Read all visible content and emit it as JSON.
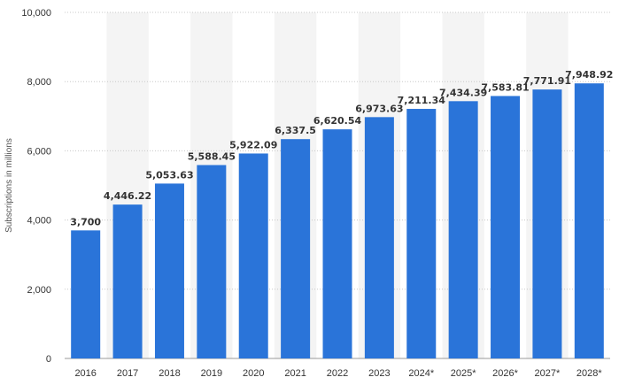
{
  "chart_data": {
    "type": "bar",
    "ylabel": "Subscriptions in millions",
    "xlabel": "",
    "categories": [
      "2016",
      "2017",
      "2018",
      "2019",
      "2020",
      "2021",
      "2022",
      "2023",
      "2024*",
      "2025*",
      "2026*",
      "2027*",
      "2028*"
    ],
    "values": [
      3700,
      4446.22,
      5053.63,
      5588.45,
      5922.09,
      6337.5,
      6620.54,
      6973.63,
      7211.34,
      7434.39,
      7583.81,
      7771.91,
      7948.92
    ],
    "value_labels": [
      "3,700",
      "4,446.22",
      "5,053.63",
      "5,588.45",
      "5,922.09",
      "6,337.5",
      "6,620.54",
      "6,973.63",
      "7,211.34",
      "7,434.39",
      "7,583.81",
      "7,771.91",
      "7,948.92"
    ],
    "ylim": [
      0,
      10000
    ],
    "yticks": [
      0,
      2000,
      4000,
      6000,
      8000,
      10000
    ],
    "ytick_labels": [
      "0",
      "2,000",
      "4,000",
      "6,000",
      "8,000",
      "10,000"
    ],
    "grid": true,
    "bar_color": "#2a74d9",
    "band_color": "#f4f4f4"
  }
}
